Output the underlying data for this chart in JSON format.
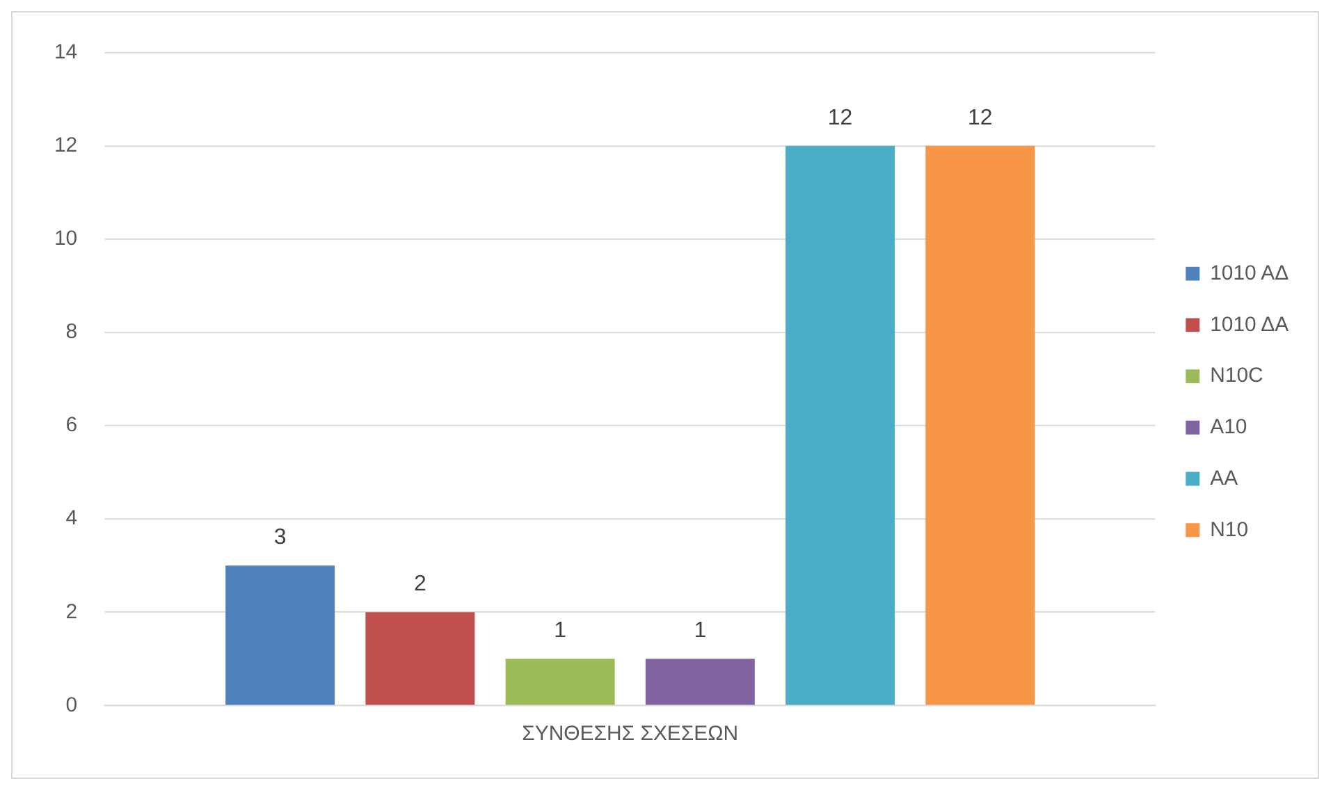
{
  "chart_data": {
    "type": "bar",
    "categories": [
      "ΣΥΝΘΕΣΗΣ ΣΧΕΣΕΩΝ"
    ],
    "series": [
      {
        "name": "1010 ΑΔ",
        "color": "#4f81bd",
        "values": [
          3
        ]
      },
      {
        "name": "1010 ΔΑ",
        "color": "#c0504d",
        "values": [
          2
        ]
      },
      {
        "name": "N10C",
        "color": "#9bbb59",
        "values": [
          1
        ]
      },
      {
        "name": "A10",
        "color": "#8064a2",
        "values": [
          1
        ]
      },
      {
        "name": "AA",
        "color": "#4bacc6",
        "values": [
          12
        ]
      },
      {
        "name": "N10",
        "color": "#f79646",
        "values": [
          12
        ]
      }
    ],
    "ylim": [
      0,
      14
    ],
    "yticks": [
      0,
      2,
      4,
      6,
      8,
      10,
      12,
      14
    ],
    "grid": "y",
    "legend": "right",
    "data_labels": true
  }
}
